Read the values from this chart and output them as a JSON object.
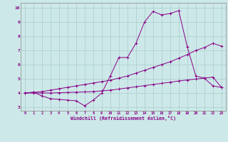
{
  "xlabel": "Windchill (Refroidissement éolien,°C)",
  "ylabel": "",
  "background_color": "#cde8e8",
  "grid_color": "#aacccc",
  "line_color": "#880088",
  "xlim": [
    -0.5,
    23.5
  ],
  "ylim": [
    2.75,
    10.35
  ],
  "xticks": [
    0,
    1,
    2,
    3,
    4,
    5,
    6,
    7,
    8,
    9,
    10,
    11,
    12,
    13,
    14,
    15,
    16,
    17,
    18,
    19,
    20,
    21,
    22,
    23
  ],
  "yticks": [
    3,
    4,
    5,
    6,
    7,
    8,
    9,
    10
  ],
  "line1_x": [
    0,
    1,
    2,
    3,
    4,
    5,
    6,
    7,
    8,
    9,
    10,
    11,
    12,
    13,
    14,
    15,
    16,
    17,
    18,
    19,
    20,
    21,
    22,
    23
  ],
  "line1_y": [
    4.0,
    4.05,
    3.8,
    3.6,
    3.55,
    3.5,
    3.45,
    3.1,
    3.5,
    4.0,
    5.2,
    6.5,
    6.5,
    7.5,
    9.0,
    9.75,
    9.5,
    9.6,
    9.8,
    7.25,
    5.2,
    5.05,
    4.5,
    4.4
  ],
  "line2_x": [
    0,
    1,
    2,
    3,
    4,
    5,
    6,
    7,
    8,
    9,
    10,
    11,
    12,
    13,
    14,
    15,
    16,
    17,
    18,
    19,
    20,
    21,
    22,
    23
  ],
  "line2_y": [
    4.0,
    4.05,
    4.1,
    4.2,
    4.3,
    4.4,
    4.5,
    4.6,
    4.7,
    4.8,
    4.9,
    5.05,
    5.2,
    5.4,
    5.6,
    5.8,
    6.0,
    6.2,
    6.45,
    6.7,
    7.0,
    7.2,
    7.5,
    7.3
  ],
  "line3_x": [
    0,
    1,
    2,
    3,
    4,
    5,
    6,
    7,
    8,
    9,
    10,
    11,
    12,
    13,
    14,
    15,
    16,
    17,
    18,
    19,
    20,
    21,
    22,
    23
  ],
  "line3_y": [
    4.0,
    4.0,
    4.0,
    4.0,
    4.02,
    4.04,
    4.06,
    4.08,
    4.1,
    4.15,
    4.2,
    4.28,
    4.36,
    4.44,
    4.52,
    4.6,
    4.68,
    4.76,
    4.85,
    4.92,
    4.98,
    5.05,
    5.12,
    4.4
  ]
}
